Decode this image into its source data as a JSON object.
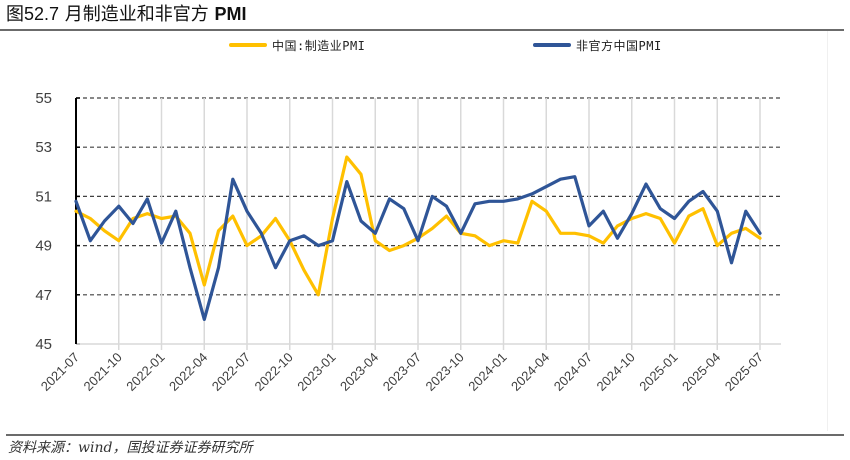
{
  "figure": {
    "title_prefix": "图",
    "title_number": "52.7",
    "title_text": " 月制造业和非官方 ",
    "title_bold": "PMI",
    "source": "资料来源：wind，国投证券证券研究所"
  },
  "colors": {
    "official": "#FFC000",
    "caixin": "#2F5597",
    "grid_dash": "#404040",
    "grid_vertical": "#d9d9d9",
    "axis": "#000000",
    "tick_label": "#404040"
  },
  "chart_data": {
    "type": "line",
    "title": "月制造业和非官方 PMI",
    "xlabel": "",
    "ylabel": "",
    "ylim": [
      45,
      55
    ],
    "yticks": [
      45,
      47,
      49,
      51,
      53,
      55
    ],
    "grid": true,
    "legend_position": "top",
    "x": [
      "2021-07",
      "2021-08",
      "2021-09",
      "2021-10",
      "2021-11",
      "2021-12",
      "2022-01",
      "2022-02",
      "2022-03",
      "2022-04",
      "2022-05",
      "2022-06",
      "2022-07",
      "2022-08",
      "2022-09",
      "2022-10",
      "2022-11",
      "2022-12",
      "2023-01",
      "2023-02",
      "2023-03",
      "2023-04",
      "2023-05",
      "2023-06",
      "2023-07",
      "2023-08",
      "2023-09",
      "2023-10",
      "2023-11",
      "2023-12",
      "2024-01",
      "2024-02",
      "2024-03",
      "2024-04",
      "2024-05",
      "2024-06",
      "2024-07",
      "2024-08",
      "2024-09",
      "2024-10",
      "2024-11",
      "2024-12",
      "2025-01",
      "2025-02",
      "2025-03",
      "2025-04",
      "2025-05",
      "2025-06",
      "2025-07"
    ],
    "xtick_labels": [
      "2021-07",
      "2021-10",
      "2022-01",
      "2022-04",
      "2022-07",
      "2022-10",
      "2023-01",
      "2023-04",
      "2023-07",
      "2023-10",
      "2024-01",
      "2024-04",
      "2024-07",
      "2024-10",
      "2025-01",
      "2025-04",
      "2025-07"
    ],
    "series": [
      {
        "name": "中国:制造业PMI",
        "color": "#FFC000",
        "values": [
          50.4,
          50.1,
          49.6,
          49.2,
          50.1,
          50.3,
          50.1,
          50.2,
          49.5,
          47.4,
          49.6,
          50.2,
          49.0,
          49.4,
          50.1,
          49.2,
          48.0,
          47.0,
          50.1,
          52.6,
          51.9,
          49.2,
          48.8,
          49.0,
          49.3,
          49.7,
          50.2,
          49.5,
          49.4,
          49.0,
          49.2,
          49.1,
          50.8,
          50.4,
          49.5,
          49.5,
          49.4,
          49.1,
          49.8,
          50.1,
          50.3,
          50.1,
          49.1,
          50.2,
          50.5,
          49.0,
          49.5,
          49.7,
          49.3
        ]
      },
      {
        "name": "非官方中国PMI",
        "color": "#2F5597",
        "values": [
          50.8,
          49.2,
          50.0,
          50.6,
          49.9,
          50.9,
          49.1,
          50.4,
          48.1,
          46.0,
          48.1,
          51.7,
          50.4,
          49.5,
          48.1,
          49.2,
          49.4,
          49.0,
          49.2,
          51.6,
          50.0,
          49.5,
          50.9,
          50.5,
          49.2,
          51.0,
          50.6,
          49.5,
          50.7,
          50.8,
          50.8,
          50.9,
          51.1,
          51.4,
          51.7,
          51.8,
          49.8,
          50.4,
          49.3,
          50.3,
          51.5,
          50.5,
          50.1,
          50.8,
          51.2,
          50.4,
          48.3,
          50.4,
          49.5
        ]
      }
    ]
  },
  "legend": {
    "items": [
      {
        "label": "中国:制造业PMI",
        "color": "#FFC000"
      },
      {
        "label": "非官方中国PMI",
        "color": "#2F5597"
      }
    ]
  }
}
